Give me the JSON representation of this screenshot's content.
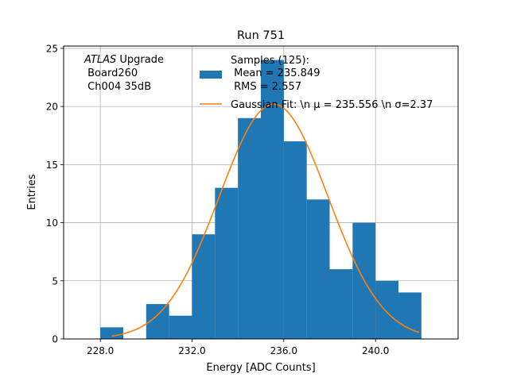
{
  "chart_data": {
    "type": "bar",
    "title": "Run 751",
    "xlabel": "Energy [ADC Counts]",
    "ylabel": "Entries",
    "xlim": [
      226.4,
      243.6
    ],
    "ylim": [
      0,
      25.2
    ],
    "grid": true,
    "x_ticks": [
      228.0,
      232.0,
      236.0,
      240.0
    ],
    "x_tick_labels": [
      "228.0",
      "232.0",
      "236.0",
      "240.0"
    ],
    "y_ticks": [
      0,
      5,
      10,
      15,
      20,
      25
    ],
    "y_tick_labels": [
      "0",
      "5",
      "10",
      "15",
      "20",
      "25"
    ],
    "bins": [
      {
        "x0": 228.0,
        "x1": 229.0,
        "count": 1
      },
      {
        "x0": 229.0,
        "x1": 230.0,
        "count": 0
      },
      {
        "x0": 230.0,
        "x1": 231.0,
        "count": 3
      },
      {
        "x0": 231.0,
        "x1": 232.0,
        "count": 2
      },
      {
        "x0": 232.0,
        "x1": 233.0,
        "count": 9
      },
      {
        "x0": 233.0,
        "x1": 234.0,
        "count": 13
      },
      {
        "x0": 234.0,
        "x1": 235.0,
        "count": 19
      },
      {
        "x0": 235.0,
        "x1": 236.0,
        "count": 24
      },
      {
        "x0": 236.0,
        "x1": 237.0,
        "count": 17
      },
      {
        "x0": 237.0,
        "x1": 238.0,
        "count": 12
      },
      {
        "x0": 238.0,
        "x1": 239.0,
        "count": 6
      },
      {
        "x0": 239.0,
        "x1": 240.0,
        "count": 10
      },
      {
        "x0": 240.0,
        "x1": 241.0,
        "count": 5
      },
      {
        "x0": 241.0,
        "x1": 242.0,
        "count": 4
      }
    ],
    "fit": {
      "mu": 235.556,
      "sigma": 2.37,
      "amplitude": 20.2,
      "x_range": [
        228.5,
        241.9
      ]
    },
    "legend_placement": "top-right",
    "legend_entries": [
      {
        "kind": "patch",
        "lines": [
          "Samples (125):",
          " Mean = 235.849",
          " RMS = 2.557"
        ]
      },
      {
        "kind": "line",
        "text": "Gaussian Fit: \\n μ = 235.556 \\n σ=2.37"
      }
    ],
    "annotation": {
      "lines": [
        "ATLAS Upgrade",
        " Board260",
        " Ch004 35dB"
      ]
    },
    "colors": {
      "bars": "#1f77b4",
      "fit": "#ff7f0e",
      "grid": "#b0b0b0",
      "axes": "#000000"
    }
  }
}
